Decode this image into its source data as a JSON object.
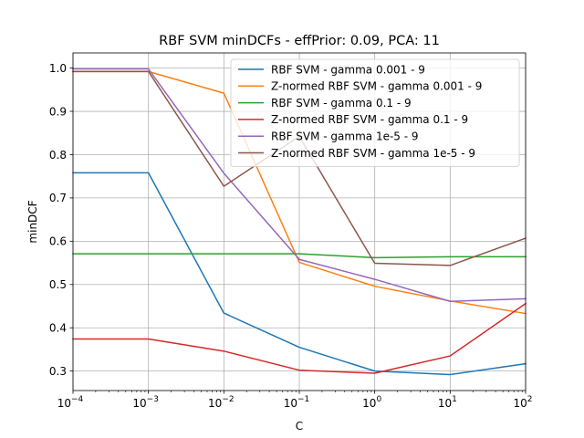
{
  "chart_data": {
    "type": "line",
    "title": "RBF SVM minDCFs - effPrior: 0.09, PCA: 11",
    "xlabel": "C",
    "ylabel": "minDCF",
    "x_scale": "log",
    "x_base": 10,
    "xlim": [
      0.0001,
      100
    ],
    "ylim": [
      0.255,
      1.035
    ],
    "x_ticks": [
      {
        "exponent": "−4",
        "value": 0.0001
      },
      {
        "exponent": "−3",
        "value": 0.001
      },
      {
        "exponent": "−2",
        "value": 0.01
      },
      {
        "exponent": "−1",
        "value": 0.1
      },
      {
        "exponent": "0",
        "value": 1
      },
      {
        "exponent": "1",
        "value": 10
      },
      {
        "exponent": "2",
        "value": 100
      }
    ],
    "y_ticks": [
      {
        "label": "0.3",
        "value": 0.3
      },
      {
        "label": "0.4",
        "value": 0.4
      },
      {
        "label": "0.5",
        "value": 0.5
      },
      {
        "label": "0.6",
        "value": 0.6
      },
      {
        "label": "0.7",
        "value": 0.7
      },
      {
        "label": "0.8",
        "value": 0.8
      },
      {
        "label": "0.9",
        "value": 0.9
      },
      {
        "label": "1.0",
        "value": 1.0
      }
    ],
    "grid": true,
    "legend_position": "top-right",
    "x": [
      0.0001,
      0.001,
      0.01,
      0.1,
      1,
      10,
      100
    ],
    "series": [
      {
        "name": "RBF SVM - gamma 0.001 - 9",
        "color": "#1f77b4",
        "values": [
          0.758,
          0.758,
          0.434,
          0.355,
          0.3,
          0.292,
          0.317
        ]
      },
      {
        "name": "Z-normed RBF SVM - gamma 0.001 - 9",
        "color": "#ff7f0e",
        "values": [
          0.992,
          0.992,
          0.942,
          0.551,
          0.496,
          0.462,
          0.433
        ]
      },
      {
        "name": "RBF SVM - gamma 0.1 - 9",
        "color": "#2ca02c",
        "values": [
          0.571,
          0.571,
          0.571,
          0.571,
          0.562,
          0.564,
          0.564
        ]
      },
      {
        "name": "Z-normed RBF SVM - gamma 0.1 - 9",
        "color": "#d62728",
        "values": [
          0.374,
          0.374,
          0.346,
          0.302,
          0.295,
          0.335,
          0.456
        ]
      },
      {
        "name": "RBF SVM - gamma 1e-5 - 9",
        "color": "#9467bd",
        "values": [
          0.998,
          0.998,
          0.757,
          0.558,
          0.512,
          0.461,
          0.467
        ]
      },
      {
        "name": "Z-normed RBF SVM - gamma 1e-5 - 9",
        "color": "#8c564b",
        "values": [
          0.992,
          0.992,
          0.727,
          0.842,
          0.549,
          0.544,
          0.607
        ]
      }
    ]
  }
}
